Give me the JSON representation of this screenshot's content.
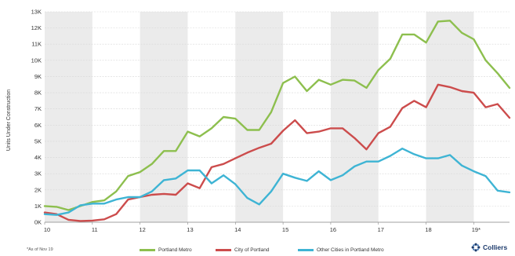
{
  "chart_data": {
    "type": "line",
    "ylabel": "Units Under Construction",
    "xlabel": "",
    "title": "",
    "ylim": [
      0,
      13000
    ],
    "yticks": [
      0,
      1000,
      2000,
      3000,
      4000,
      5000,
      6000,
      7000,
      8000,
      9000,
      10000,
      11000,
      12000,
      13000
    ],
    "ytick_labels": [
      "0K",
      "1K",
      "2K",
      "3K",
      "4K",
      "5K",
      "6K",
      "7K",
      "8K",
      "9K",
      "10K",
      "11K",
      "12K",
      "13K"
    ],
    "xlim": [
      2010,
      2019.75
    ],
    "xticks": [
      2010,
      2011,
      2012,
      2013,
      2014,
      2015,
      2016,
      2017,
      2018,
      2019
    ],
    "xtick_labels": [
      "10",
      "11",
      "12",
      "13",
      "14",
      "15",
      "16",
      "17",
      "18",
      "19*"
    ],
    "shaded_years": [
      2010,
      2012,
      2014,
      2016,
      2018
    ],
    "grid": true,
    "x": [
      2010.0,
      2010.25,
      2010.5,
      2010.75,
      2011.0,
      2011.25,
      2011.5,
      2011.75,
      2012.0,
      2012.25,
      2012.5,
      2012.75,
      2013.0,
      2013.25,
      2013.5,
      2013.75,
      2014.0,
      2014.25,
      2014.5,
      2014.75,
      2015.0,
      2015.25,
      2015.5,
      2015.75,
      2016.0,
      2016.25,
      2016.5,
      2016.75,
      2017.0,
      2017.25,
      2017.5,
      2017.75,
      2018.0,
      2018.25,
      2018.5,
      2018.75,
      2019.0,
      2019.25,
      2019.5,
      2019.75
    ],
    "series": [
      {
        "name": "Portland Metro",
        "color": "#8dbf4e",
        "values": [
          1000,
          950,
          750,
          1000,
          1250,
          1350,
          1900,
          2850,
          3100,
          3600,
          4400,
          4400,
          5600,
          5300,
          5800,
          6500,
          6400,
          5700,
          5700,
          6800,
          8600,
          9000,
          8100,
          8800,
          8500,
          8800,
          8750,
          8300,
          9400,
          10100,
          11600,
          11600,
          11100,
          12400,
          12450,
          11700,
          11300,
          10000,
          9200,
          8300
        ]
      },
      {
        "name": "City of Portland",
        "color": "#cc4c4c",
        "values": [
          600,
          500,
          150,
          80,
          100,
          180,
          500,
          1400,
          1550,
          1700,
          1750,
          1700,
          2400,
          2100,
          3400,
          3600,
          3950,
          4300,
          4600,
          4850,
          5650,
          6300,
          5500,
          5600,
          5800,
          5800,
          5200,
          4500,
          5500,
          5900,
          7050,
          7500,
          7100,
          8500,
          8350,
          8100,
          8000,
          7100,
          7300,
          6450
        ]
      },
      {
        "name": "Other Cities in Portland Metro",
        "color": "#3eb4d4",
        "values": [
          500,
          450,
          600,
          1050,
          1150,
          1150,
          1400,
          1550,
          1550,
          1900,
          2600,
          2700,
          3200,
          3200,
          2400,
          2900,
          2350,
          1500,
          1100,
          1900,
          3000,
          2750,
          2550,
          3150,
          2600,
          2900,
          3450,
          3750,
          3750,
          4100,
          4550,
          4200,
          3950,
          3950,
          4150,
          3500,
          3150,
          2850,
          1950,
          1850
        ]
      }
    ],
    "footnote": "*As of Nov 19",
    "logo_text": "Colliers"
  }
}
